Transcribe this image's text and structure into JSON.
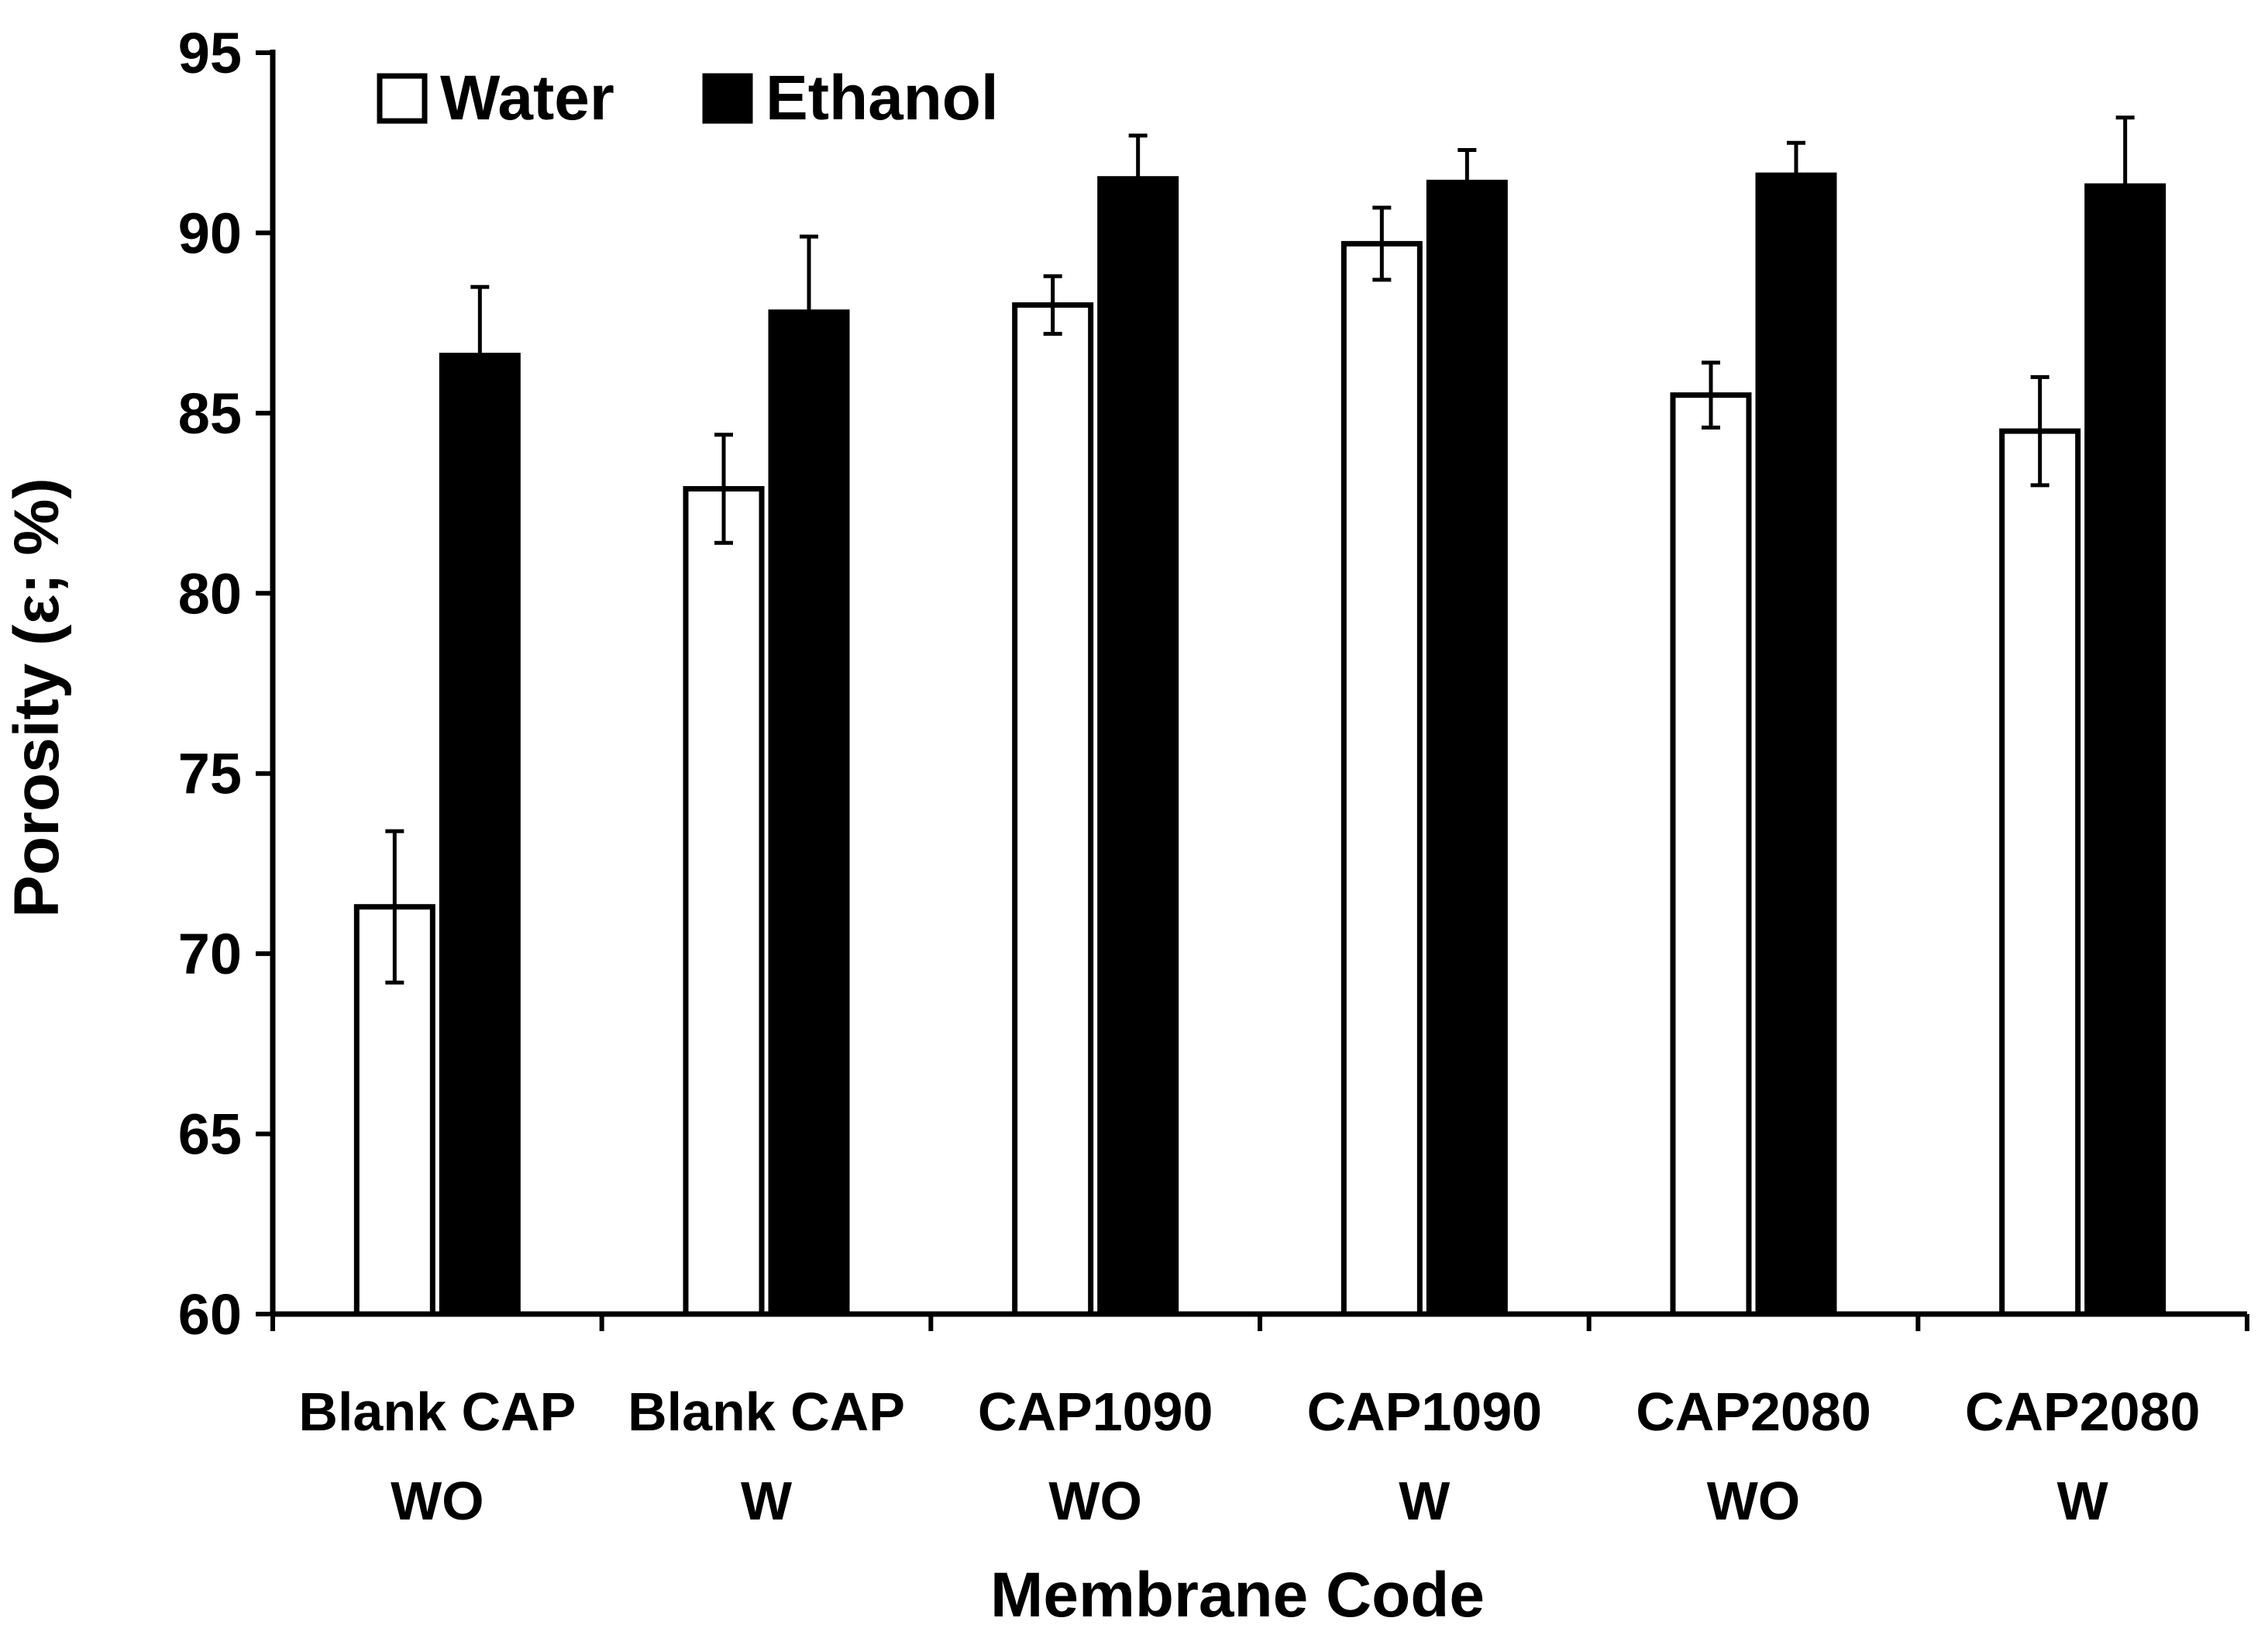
{
  "chart_data": {
    "type": "bar",
    "title": "",
    "xlabel": "Membrane Code",
    "ylabel": "Porosity (ε; %)",
    "ylim": [
      60,
      95
    ],
    "yticks": [
      60,
      65,
      70,
      75,
      80,
      85,
      90,
      95
    ],
    "grid": false,
    "legend_position": "top-left",
    "categories": [
      [
        "Blank CAP",
        "WO"
      ],
      [
        "Blank CAP",
        "W"
      ],
      [
        "CAP1090",
        "WO"
      ],
      [
        "CAP1090",
        "W"
      ],
      [
        "CAP2080",
        "WO"
      ],
      [
        "CAP2080",
        "W"
      ]
    ],
    "series": [
      {
        "name": "Water",
        "fill": "#ffffff",
        "stroke": "#000000",
        "values": [
          71.3,
          82.9,
          88.0,
          89.7,
          85.5,
          84.5
        ],
        "errors": [
          2.1,
          1.5,
          0.8,
          1.0,
          0.9,
          1.5
        ]
      },
      {
        "name": "Ethanol",
        "fill": "#000000",
        "stroke": "#000000",
        "values": [
          86.6,
          87.8,
          91.5,
          91.4,
          91.6,
          91.3
        ],
        "errors": [
          1.9,
          2.1,
          1.2,
          0.9,
          0.9,
          1.9
        ]
      }
    ]
  }
}
